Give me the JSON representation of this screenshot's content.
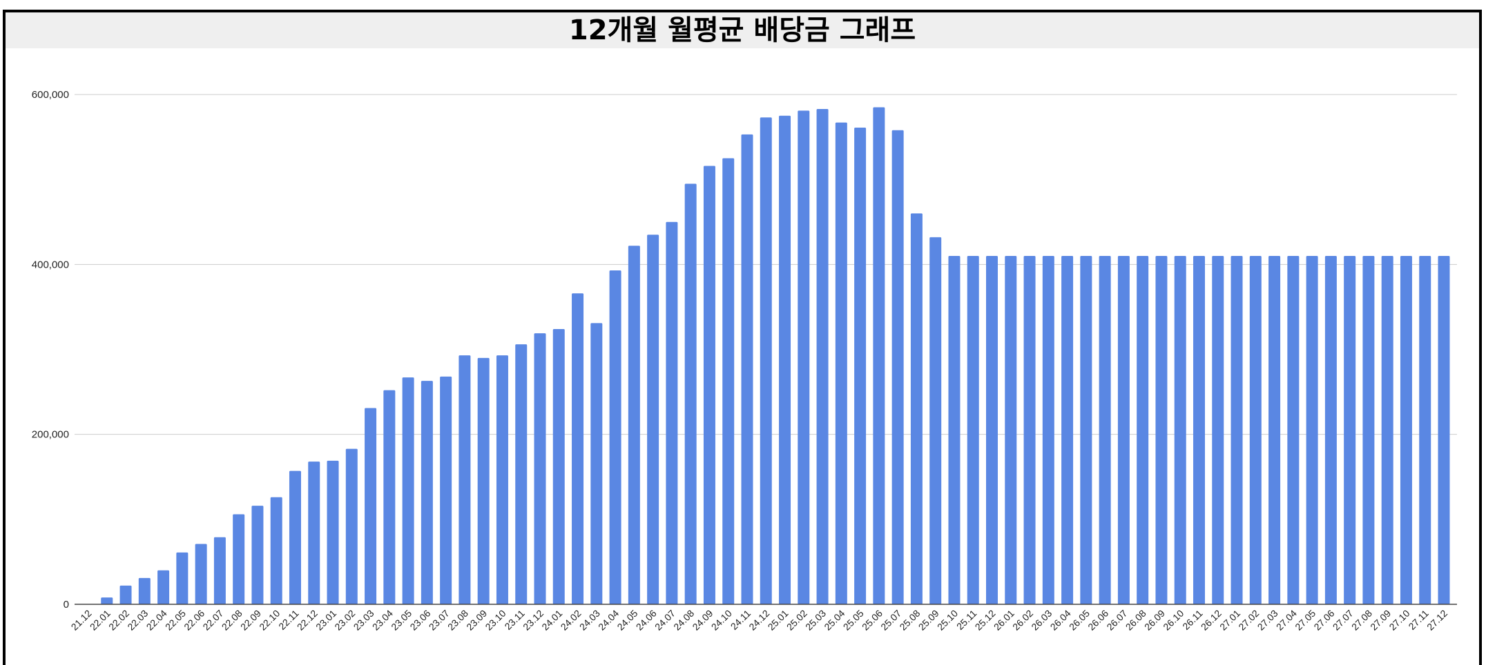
{
  "chart_data": {
    "type": "bar",
    "title": "12개월 월평균 배당금 그래프",
    "xlabel": "",
    "ylabel": "",
    "ylim": [
      0,
      600000
    ],
    "yticks": [
      0,
      200000,
      400000,
      600000
    ],
    "ytick_labels": [
      "0",
      "200,000",
      "400,000",
      "600,000"
    ],
    "grid": true,
    "legend": "none",
    "bar_color": "#5a87e3",
    "categories": [
      "21.12",
      "22.01",
      "22.02",
      "22.03",
      "22.04",
      "22.05",
      "22.06",
      "22.07",
      "22.08",
      "22.09",
      "22.10",
      "22.11",
      "22.12",
      "23.01",
      "23.02",
      "23.03",
      "23.04",
      "23.05",
      "23.06",
      "23.07",
      "23.08",
      "23.09",
      "23.10",
      "23.11",
      "23.12",
      "24.01",
      "24.02",
      "24.03",
      "24.04",
      "24.05",
      "24.06",
      "24.07",
      "24.08",
      "24.09",
      "24.10",
      "24.11",
      "24.12",
      "25.01",
      "25.02",
      "25.03",
      "25.04",
      "25.05",
      "25.06",
      "25.07",
      "25.08",
      "25.09",
      "25.10",
      "25.11",
      "25.12",
      "26.01",
      "26.02",
      "26.03",
      "26.04",
      "26.05",
      "26.06",
      "26.07",
      "26.08",
      "26.09",
      "26.10",
      "26.11",
      "26.12",
      "27.01",
      "27.02",
      "27.03",
      "27.04",
      "27.05",
      "27.06",
      "27.07",
      "27.08",
      "27.09",
      "27.10",
      "27.11",
      "27.12"
    ],
    "values": [
      0,
      8000,
      22000,
      31000,
      40000,
      61000,
      71000,
      79000,
      106000,
      116000,
      126000,
      157000,
      168000,
      169000,
      183000,
      231000,
      252000,
      267000,
      263000,
      268000,
      293000,
      290000,
      293000,
      306000,
      319000,
      324000,
      366000,
      331000,
      393000,
      422000,
      435000,
      450000,
      495000,
      516000,
      525000,
      553000,
      573000,
      575000,
      581000,
      583000,
      567000,
      561000,
      585000,
      558000,
      460000,
      432000,
      410000,
      410000,
      410000,
      410000,
      410000,
      410000,
      410000,
      410000,
      410000,
      410000,
      410000,
      410000,
      410000,
      410000,
      410000,
      410000,
      410000,
      410000,
      410000,
      410000,
      410000,
      410000,
      410000,
      410000,
      410000,
      410000,
      410000
    ]
  }
}
